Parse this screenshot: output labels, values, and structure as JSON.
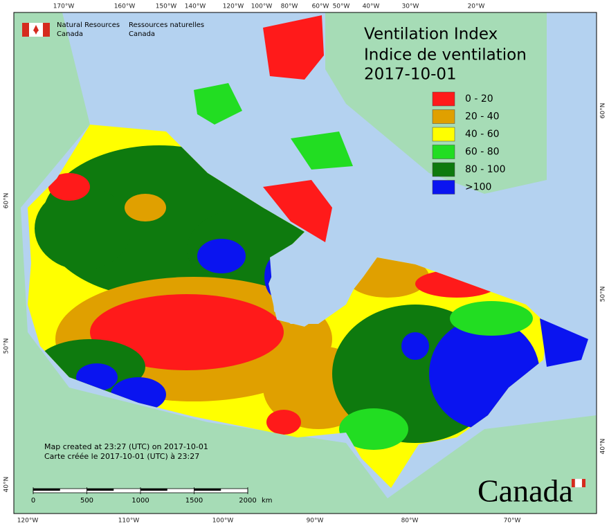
{
  "header": {
    "agency_en": [
      "Natural Resources",
      "Canada"
    ],
    "agency_fr": [
      "Ressources naturelles",
      "Canada"
    ]
  },
  "title": [
    "Ventilation Index",
    "Indice de ventilation",
    "2017-10-01"
  ],
  "legend": [
    {
      "label": "0 - 20",
      "color": "#ff1a1a"
    },
    {
      "label": "20 - 40",
      "color": "#e0a000"
    },
    {
      "label": "40 - 60",
      "color": "#ffff00"
    },
    {
      "label": "60 - 80",
      "color": "#22dd22"
    },
    {
      "label": "80 - 100",
      "color": "#0e7a0e"
    },
    {
      "label": ">100",
      "color": "#0a14f0"
    }
  ],
  "graticule": {
    "top": [
      "170°W",
      "160°W",
      "150°W",
      "140°W",
      "120°W",
      "100°W",
      "80°W",
      "60°W",
      "50°W",
      "40°W",
      "30°W",
      "20°W"
    ],
    "bottom": [
      "120°W",
      "110°W",
      "100°W",
      "90°W",
      "80°W",
      "70°W"
    ],
    "left": [
      "60°N",
      "50°N",
      "40°N"
    ],
    "right": [
      "60°N",
      "50°N",
      "40°N"
    ]
  },
  "notes": [
    "Map created at 23:27 (UTC) on 2017-10-01",
    "Carte créée le 2017-10-01 (UTC) à 23:27"
  ],
  "scale_bar": {
    "ticks": [
      0,
      500,
      1000,
      1500,
      2000
    ],
    "unit": "km"
  },
  "wordmark": "Canada"
}
